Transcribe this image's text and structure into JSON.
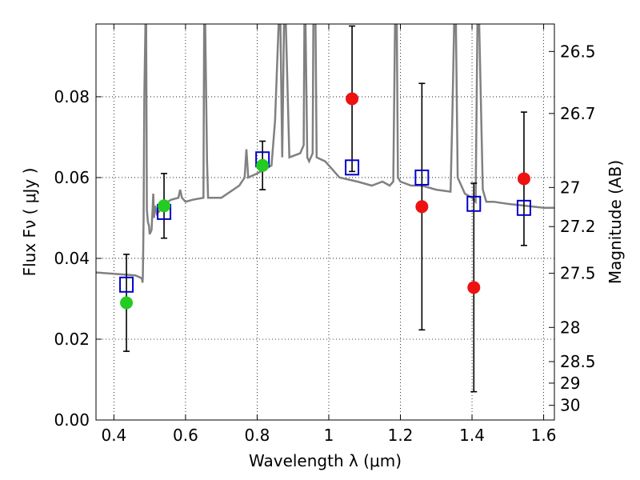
{
  "chart_data": {
    "type": "scatter",
    "title": "",
    "xlabel": "Wavelength  λ (μm)",
    "ylabel": "Flux  Fν  ( μJy )",
    "y2label": "Magnitude (AB)",
    "xlim": [
      0.35,
      1.63
    ],
    "ylim": [
      0.0,
      0.098
    ],
    "grid": true,
    "x_ticks": [
      {
        "value": 0.4,
        "label": "0.4"
      },
      {
        "value": 0.6,
        "label": "0.6"
      },
      {
        "value": 0.8,
        "label": "0.8"
      },
      {
        "value": 1.0,
        "label": "1"
      },
      {
        "value": 1.2,
        "label": "1.2"
      },
      {
        "value": 1.4,
        "label": "1.4"
      },
      {
        "value": 1.6,
        "label": "1.6"
      }
    ],
    "y_ticks": [
      {
        "value": 0.0,
        "label": "0.00"
      },
      {
        "value": 0.02,
        "label": "0.02"
      },
      {
        "value": 0.04,
        "label": "0.04"
      },
      {
        "value": 0.06,
        "label": "0.06"
      },
      {
        "value": 0.08,
        "label": "0.08"
      }
    ],
    "y2_ticks": [
      {
        "value": 26.5,
        "label": "26.5"
      },
      {
        "value": 26.7,
        "label": "26.7"
      },
      {
        "value": 27,
        "label": "27"
      },
      {
        "value": 27.2,
        "label": "27.2"
      },
      {
        "value": 27.5,
        "label": "27.5"
      },
      {
        "value": 28,
        "label": "28"
      },
      {
        "value": 28.5,
        "label": "28.5"
      },
      {
        "value": 29,
        "label": "29"
      },
      {
        "value": 30,
        "label": "30"
      }
    ],
    "series": [
      {
        "kind": "line",
        "color": "#808080",
        "x": [
          0.35,
          0.4,
          0.46,
          0.475,
          0.478,
          0.48,
          0.481,
          0.483,
          0.485,
          0.488,
          0.49,
          0.492,
          0.495,
          0.498,
          0.5,
          0.505,
          0.508,
          0.51,
          0.512,
          0.515,
          0.52,
          0.53,
          0.54,
          0.56,
          0.58,
          0.585,
          0.59,
          0.6,
          0.62,
          0.65,
          0.652,
          0.655,
          0.66,
          0.663,
          0.7,
          0.75,
          0.765,
          0.77,
          0.775,
          0.8,
          0.84,
          0.85,
          0.86,
          0.862,
          0.865,
          0.87,
          0.875,
          0.88,
          0.89,
          0.92,
          0.93,
          0.932,
          0.935,
          0.94,
          0.945,
          0.955,
          0.957,
          0.96,
          0.963,
          0.966,
          0.99,
          1.03,
          1.08,
          1.12,
          1.15,
          1.17,
          1.18,
          1.185,
          1.19,
          1.193,
          1.2,
          1.23,
          1.26,
          1.3,
          1.34,
          1.345,
          1.35,
          1.355,
          1.36,
          1.38,
          1.4,
          1.41,
          1.415,
          1.42,
          1.43,
          1.44,
          1.46,
          1.5,
          1.55,
          1.6,
          1.63
        ],
        "y": [
          0.0365,
          0.0362,
          0.0358,
          0.0352,
          0.035,
          0.034,
          0.036,
          0.05,
          0.08,
          0.098,
          0.098,
          0.052,
          0.049,
          0.048,
          0.046,
          0.047,
          0.052,
          0.056,
          0.05,
          0.053,
          0.051,
          0.052,
          0.0535,
          0.0545,
          0.055,
          0.057,
          0.055,
          0.054,
          0.0545,
          0.055,
          0.098,
          0.098,
          0.064,
          0.055,
          0.055,
          0.058,
          0.06,
          0.067,
          0.06,
          0.061,
          0.063,
          0.074,
          0.098,
          0.098,
          0.098,
          0.065,
          0.098,
          0.098,
          0.065,
          0.066,
          0.068,
          0.098,
          0.098,
          0.065,
          0.064,
          0.066,
          0.098,
          0.098,
          0.098,
          0.065,
          0.064,
          0.06,
          0.059,
          0.058,
          0.059,
          0.058,
          0.059,
          0.098,
          0.098,
          0.06,
          0.059,
          0.058,
          0.058,
          0.057,
          0.0565,
          0.075,
          0.098,
          0.098,
          0.06,
          0.056,
          0.055,
          0.054,
          0.098,
          0.098,
          0.057,
          0.054,
          0.054,
          0.0535,
          0.053,
          0.0525,
          0.0525
        ]
      },
      {
        "kind": "open-square",
        "color": "#0000cc",
        "x": [
          0.435,
          0.54,
          0.815,
          1.065,
          1.26,
          1.405,
          1.545
        ],
        "y": [
          0.0335,
          0.0515,
          0.0645,
          0.0625,
          0.06,
          0.0535,
          0.0525
        ]
      },
      {
        "kind": "point",
        "color": "#22cc22",
        "x": [
          0.435,
          0.54,
          0.815
        ],
        "y": [
          0.029,
          0.053,
          0.063
        ],
        "err": [
          0.012,
          0.008,
          0.006
        ]
      },
      {
        "kind": "point",
        "color": "#ee1111",
        "x": [
          1.065,
          1.26,
          1.405,
          1.545
        ],
        "y": [
          0.0795,
          0.0528,
          0.0328,
          0.0597
        ],
        "err": [
          0.018,
          0.0305,
          0.0258,
          0.0165
        ]
      }
    ]
  }
}
